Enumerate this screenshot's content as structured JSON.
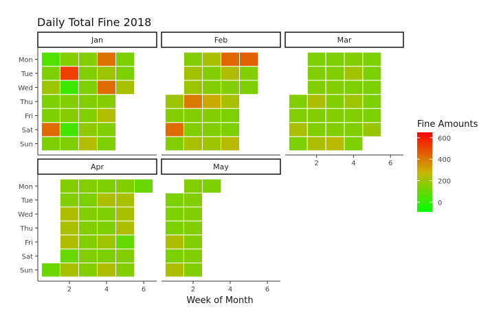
{
  "chart_data": {
    "type": "heatmap",
    "title": "Daily Total Fine 2018",
    "xlabel": "Week of Month",
    "ylabel": "",
    "days": [
      "Mon",
      "Tue",
      "Wed",
      "Thu",
      "Fri",
      "Sat",
      "Sun"
    ],
    "x_ticks": [
      "2",
      "4",
      "6"
    ],
    "xlim": [
      0.3,
      6.7
    ],
    "legend": {
      "title": "Fine Amounts",
      "position": "right",
      "ticks": [
        "0",
        "200",
        "400",
        "600"
      ],
      "range": [
        -90,
        650
      ],
      "gradient": {
        "low": "#00FF00",
        "mid": "#C8B400",
        "high": "#FF0000"
      }
    },
    "panels": [
      {
        "name": "Jan",
        "cells": [
          {
            "week": 1,
            "day": "Mon",
            "value": 60
          },
          {
            "week": 2,
            "day": "Mon",
            "value": 150
          },
          {
            "week": 3,
            "day": "Mon",
            "value": 150
          },
          {
            "week": 4,
            "day": "Mon",
            "value": 420
          },
          {
            "week": 5,
            "day": "Mon",
            "value": 140
          },
          {
            "week": 1,
            "day": "Tue",
            "value": 140
          },
          {
            "week": 2,
            "day": "Tue",
            "value": 520
          },
          {
            "week": 3,
            "day": "Tue",
            "value": 150
          },
          {
            "week": 4,
            "day": "Tue",
            "value": 200
          },
          {
            "week": 5,
            "day": "Tue",
            "value": 140
          },
          {
            "week": 1,
            "day": "Wed",
            "value": 200
          },
          {
            "week": 2,
            "day": "Wed",
            "value": 20
          },
          {
            "week": 3,
            "day": "Wed",
            "value": 140
          },
          {
            "week": 4,
            "day": "Wed",
            "value": 430
          },
          {
            "week": 5,
            "day": "Wed",
            "value": 220
          },
          {
            "week": 1,
            "day": "Thu",
            "value": 140
          },
          {
            "week": 2,
            "day": "Thu",
            "value": 150
          },
          {
            "week": 3,
            "day": "Thu",
            "value": 150
          },
          {
            "week": 4,
            "day": "Thu",
            "value": 160
          },
          {
            "week": 1,
            "day": "Fri",
            "value": 140
          },
          {
            "week": 2,
            "day": "Fri",
            "value": 160
          },
          {
            "week": 3,
            "day": "Fri",
            "value": 150
          },
          {
            "week": 4,
            "day": "Fri",
            "value": 240
          },
          {
            "week": 1,
            "day": "Sat",
            "value": 430
          },
          {
            "week": 2,
            "day": "Sat",
            "value": 40
          },
          {
            "week": 3,
            "day": "Sat",
            "value": 170
          },
          {
            "week": 4,
            "day": "Sat",
            "value": 150
          },
          {
            "week": 1,
            "day": "Sun",
            "value": 140
          },
          {
            "week": 2,
            "day": "Sun",
            "value": 140
          },
          {
            "week": 3,
            "day": "Sun",
            "value": 240
          },
          {
            "week": 4,
            "day": "Sun",
            "value": 140
          }
        ]
      },
      {
        "name": "Feb",
        "cells": [
          {
            "week": 2,
            "day": "Mon",
            "value": 150
          },
          {
            "week": 3,
            "day": "Mon",
            "value": 220
          },
          {
            "week": 4,
            "day": "Mon",
            "value": 440
          },
          {
            "week": 5,
            "day": "Mon",
            "value": 450
          },
          {
            "week": 2,
            "day": "Tue",
            "value": 210
          },
          {
            "week": 3,
            "day": "Tue",
            "value": 150
          },
          {
            "week": 4,
            "day": "Tue",
            "value": 230
          },
          {
            "week": 5,
            "day": "Tue",
            "value": 150
          },
          {
            "week": 2,
            "day": "Wed",
            "value": 200
          },
          {
            "week": 3,
            "day": "Wed",
            "value": 150
          },
          {
            "week": 4,
            "day": "Wed",
            "value": 150
          },
          {
            "week": 5,
            "day": "Wed",
            "value": 140
          },
          {
            "week": 1,
            "day": "Thu",
            "value": 200
          },
          {
            "week": 2,
            "day": "Thu",
            "value": 400
          },
          {
            "week": 3,
            "day": "Thu",
            "value": 300
          },
          {
            "week": 4,
            "day": "Thu",
            "value": 220
          },
          {
            "week": 1,
            "day": "Fri",
            "value": 150
          },
          {
            "week": 2,
            "day": "Fri",
            "value": 150
          },
          {
            "week": 3,
            "day": "Fri",
            "value": 150
          },
          {
            "week": 4,
            "day": "Fri",
            "value": 140
          },
          {
            "week": 1,
            "day": "Sat",
            "value": 430
          },
          {
            "week": 2,
            "day": "Sat",
            "value": 150
          },
          {
            "week": 3,
            "day": "Sat",
            "value": 150
          },
          {
            "week": 4,
            "day": "Sat",
            "value": 140
          },
          {
            "week": 1,
            "day": "Sun",
            "value": 150
          },
          {
            "week": 2,
            "day": "Sun",
            "value": 220
          },
          {
            "week": 3,
            "day": "Sun",
            "value": 200
          },
          {
            "week": 4,
            "day": "Sun",
            "value": 250
          }
        ]
      },
      {
        "name": "Mar",
        "cells": [
          {
            "week": 2,
            "day": "Mon",
            "value": 140
          },
          {
            "week": 3,
            "day": "Mon",
            "value": 140
          },
          {
            "week": 4,
            "day": "Mon",
            "value": 150
          },
          {
            "week": 5,
            "day": "Mon",
            "value": 140
          },
          {
            "week": 2,
            "day": "Tue",
            "value": 150
          },
          {
            "week": 3,
            "day": "Tue",
            "value": 150
          },
          {
            "week": 4,
            "day": "Tue",
            "value": 210
          },
          {
            "week": 5,
            "day": "Tue",
            "value": 140
          },
          {
            "week": 2,
            "day": "Wed",
            "value": 150
          },
          {
            "week": 3,
            "day": "Wed",
            "value": 150
          },
          {
            "week": 4,
            "day": "Wed",
            "value": 140
          },
          {
            "week": 5,
            "day": "Wed",
            "value": 140
          },
          {
            "week": 1,
            "day": "Thu",
            "value": 150
          },
          {
            "week": 2,
            "day": "Thu",
            "value": 230
          },
          {
            "week": 3,
            "day": "Thu",
            "value": 150
          },
          {
            "week": 4,
            "day": "Thu",
            "value": 200
          },
          {
            "week": 5,
            "day": "Thu",
            "value": 140
          },
          {
            "week": 1,
            "day": "Fri",
            "value": 150
          },
          {
            "week": 2,
            "day": "Fri",
            "value": 150
          },
          {
            "week": 3,
            "day": "Fri",
            "value": 150
          },
          {
            "week": 4,
            "day": "Fri",
            "value": 150
          },
          {
            "week": 5,
            "day": "Fri",
            "value": 140
          },
          {
            "week": 1,
            "day": "Sat",
            "value": 220
          },
          {
            "week": 2,
            "day": "Sat",
            "value": 150
          },
          {
            "week": 3,
            "day": "Sat",
            "value": 150
          },
          {
            "week": 4,
            "day": "Sat",
            "value": 150
          },
          {
            "week": 5,
            "day": "Sat",
            "value": 190
          },
          {
            "week": 1,
            "day": "Sun",
            "value": 140
          },
          {
            "week": 2,
            "day": "Sun",
            "value": 230
          },
          {
            "week": 3,
            "day": "Sun",
            "value": 250
          },
          {
            "week": 4,
            "day": "Sun",
            "value": 140
          }
        ]
      },
      {
        "name": "Apr",
        "cells": [
          {
            "week": 2,
            "day": "Mon",
            "value": 150
          },
          {
            "week": 3,
            "day": "Mon",
            "value": 150
          },
          {
            "week": 4,
            "day": "Mon",
            "value": 140
          },
          {
            "week": 5,
            "day": "Mon",
            "value": 150
          },
          {
            "week": 6,
            "day": "Mon",
            "value": 100
          },
          {
            "week": 2,
            "day": "Tue",
            "value": 150
          },
          {
            "week": 3,
            "day": "Tue",
            "value": 140
          },
          {
            "week": 4,
            "day": "Tue",
            "value": 230
          },
          {
            "week": 5,
            "day": "Tue",
            "value": 220
          },
          {
            "week": 2,
            "day": "Wed",
            "value": 230
          },
          {
            "week": 3,
            "day": "Wed",
            "value": 150
          },
          {
            "week": 4,
            "day": "Wed",
            "value": 140
          },
          {
            "week": 5,
            "day": "Wed",
            "value": 220
          },
          {
            "week": 2,
            "day": "Thu",
            "value": 220
          },
          {
            "week": 3,
            "day": "Thu",
            "value": 150
          },
          {
            "week": 4,
            "day": "Thu",
            "value": 140
          },
          {
            "week": 5,
            "day": "Thu",
            "value": 230
          },
          {
            "week": 2,
            "day": "Fri",
            "value": 230
          },
          {
            "week": 3,
            "day": "Fri",
            "value": 150
          },
          {
            "week": 4,
            "day": "Fri",
            "value": 200
          },
          {
            "week": 5,
            "day": "Fri",
            "value": 90
          },
          {
            "week": 2,
            "day": "Sat",
            "value": 100
          },
          {
            "week": 3,
            "day": "Sat",
            "value": 150
          },
          {
            "week": 4,
            "day": "Sat",
            "value": 140
          },
          {
            "week": 5,
            "day": "Sat",
            "value": 150
          },
          {
            "week": 1,
            "day": "Sun",
            "value": 110
          },
          {
            "week": 2,
            "day": "Sun",
            "value": 220
          },
          {
            "week": 3,
            "day": "Sun",
            "value": 150
          },
          {
            "week": 4,
            "day": "Sun",
            "value": 230
          },
          {
            "week": 5,
            "day": "Sun",
            "value": 150
          }
        ]
      },
      {
        "name": "May",
        "cells": [
          {
            "week": 2,
            "day": "Mon",
            "value": 150
          },
          {
            "week": 3,
            "day": "Mon",
            "value": 140
          },
          {
            "week": 1,
            "day": "Tue",
            "value": 140
          },
          {
            "week": 2,
            "day": "Tue",
            "value": 150
          },
          {
            "week": 1,
            "day": "Wed",
            "value": 140
          },
          {
            "week": 2,
            "day": "Wed",
            "value": 150
          },
          {
            "week": 1,
            "day": "Thu",
            "value": 140
          },
          {
            "week": 2,
            "day": "Thu",
            "value": 150
          },
          {
            "week": 1,
            "day": "Fri",
            "value": 230
          },
          {
            "week": 2,
            "day": "Fri",
            "value": 150
          },
          {
            "week": 1,
            "day": "Sat",
            "value": 140
          },
          {
            "week": 2,
            "day": "Sat",
            "value": 150
          },
          {
            "week": 1,
            "day": "Sun",
            "value": 230
          },
          {
            "week": 2,
            "day": "Sun",
            "value": 150
          }
        ]
      }
    ]
  }
}
